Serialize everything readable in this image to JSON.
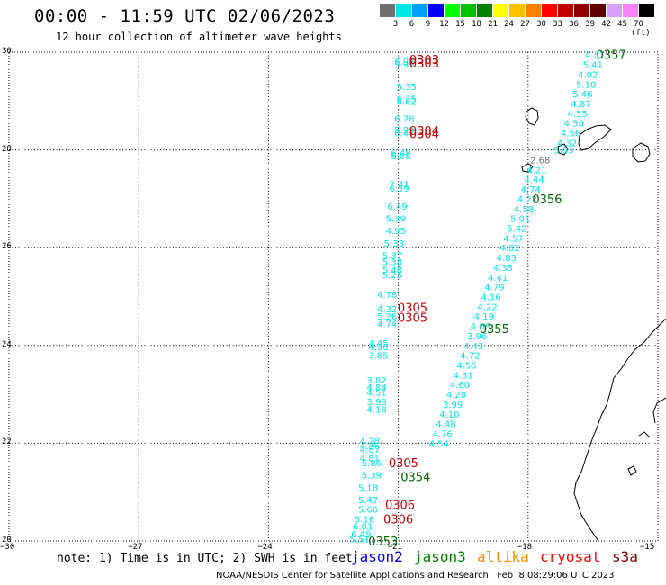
{
  "header": {
    "title": "00:00 - 11:59 UTC 02/06/2023",
    "subtitle": "12 hour collection of altimeter wave heights"
  },
  "color_scale": {
    "unit_label": "(ft)",
    "items": [
      {
        "label": "3",
        "color": "#707070"
      },
      {
        "label": "6",
        "color": "#00e6e6"
      },
      {
        "label": "9",
        "color": "#00a0ff"
      },
      {
        "label": "12",
        "color": "#0000ff"
      },
      {
        "label": "15",
        "color": "#00ff00"
      },
      {
        "label": "18",
        "color": "#00c000"
      },
      {
        "label": "21",
        "color": "#008000"
      },
      {
        "label": "24",
        "color": "#ffff00"
      },
      {
        "label": "27",
        "color": "#ffc000"
      },
      {
        "label": "30",
        "color": "#ff8000"
      },
      {
        "label": "33",
        "color": "#ff0000"
      },
      {
        "label": "36",
        "color": "#c00000"
      },
      {
        "label": "39",
        "color": "#900000"
      },
      {
        "label": "42",
        "color": "#600000"
      },
      {
        "label": "45",
        "color": "#d8a0ff"
      },
      {
        "label": "70",
        "color": "#ff80ff"
      },
      {
        "label": "",
        "color": "#000000"
      }
    ]
  },
  "axes": {
    "y_ticks": [
      "30",
      "28",
      "26",
      "24",
      "22",
      "20"
    ],
    "x_ticks": [
      "−30",
      "−27",
      "−24",
      "−21",
      "−18",
      "−15"
    ]
  },
  "map": {
    "lon_range": [
      -30,
      -15
    ],
    "lat_range": [
      20,
      30
    ],
    "grid": "dotted",
    "coastline_color": "#000000"
  },
  "track_colors": {
    "jason3": "#00e6e6",
    "time": "#cc0000",
    "time_alt": "#006600",
    "gray": "#707070"
  },
  "tracks": [
    {
      "name": "west",
      "points": [
        {
          "lat": 29.82,
          "lon": -20.86,
          "v": "6.98"
        },
        {
          "lat": 29.75,
          "lon": -20.86,
          "v": "5.95"
        },
        {
          "lat": 29.3,
          "lon": -20.81,
          "v": "5.35"
        },
        {
          "lat": 29.05,
          "lon": -20.81,
          "v": "6.35"
        },
        {
          "lat": 29.0,
          "lon": -20.81,
          "v": "6.82"
        },
        {
          "lat": 28.65,
          "lon": -20.86,
          "v": "6.76"
        },
        {
          "lat": 28.42,
          "lon": -20.86,
          "v": "5.99"
        },
        {
          "lat": 28.35,
          "lon": -20.86,
          "v": "6.47"
        },
        {
          "lat": 27.95,
          "lon": -20.94,
          "v": "6.48"
        },
        {
          "lat": 27.88,
          "lon": -20.94,
          "v": "6.88"
        },
        {
          "lat": 27.3,
          "lon": -20.98,
          "v": "7.41"
        },
        {
          "lat": 27.22,
          "lon": -20.98,
          "v": "6.59"
        },
        {
          "lat": 26.85,
          "lon": -21.02,
          "v": "6.49"
        },
        {
          "lat": 26.6,
          "lon": -21.06,
          "v": "5.39"
        },
        {
          "lat": 26.35,
          "lon": -21.06,
          "v": "4.95"
        },
        {
          "lat": 26.1,
          "lon": -21.1,
          "v": "5.33"
        },
        {
          "lat": 25.85,
          "lon": -21.14,
          "v": "5.37"
        },
        {
          "lat": 25.72,
          "lon": -21.14,
          "v": "5.38"
        },
        {
          "lat": 25.55,
          "lon": -21.14,
          "v": "5.48"
        },
        {
          "lat": 25.45,
          "lon": -21.14,
          "v": "5.25"
        },
        {
          "lat": 25.05,
          "lon": -21.26,
          "v": "4.78"
        },
        {
          "lat": 24.75,
          "lon": -21.26,
          "v": "4.32"
        },
        {
          "lat": 24.6,
          "lon": -21.26,
          "v": "5.26"
        },
        {
          "lat": 24.45,
          "lon": -21.26,
          "v": "4.74"
        },
        {
          "lat": 24.05,
          "lon": -21.46,
          "v": "4.45"
        },
        {
          "lat": 23.98,
          "lon": -21.46,
          "v": "4.90"
        },
        {
          "lat": 23.8,
          "lon": -21.46,
          "v": "3.85"
        },
        {
          "lat": 23.3,
          "lon": -21.5,
          "v": "3.82"
        },
        {
          "lat": 23.15,
          "lon": -21.5,
          "v": "4.84"
        },
        {
          "lat": 23.05,
          "lon": -21.5,
          "v": "4.51"
        },
        {
          "lat": 22.85,
          "lon": -21.5,
          "v": "3.98"
        },
        {
          "lat": 22.7,
          "lon": -21.5,
          "v": "4.18"
        },
        {
          "lat": 22.05,
          "lon": -21.66,
          "v": "4.28"
        },
        {
          "lat": 21.95,
          "lon": -21.66,
          "v": "4.36"
        },
        {
          "lat": 21.88,
          "lon": -21.66,
          "v": "4.87"
        },
        {
          "lat": 21.7,
          "lon": -21.66,
          "v": "4.81"
        },
        {
          "lat": 21.6,
          "lon": -21.62,
          "v": "5.86"
        },
        {
          "lat": 21.35,
          "lon": -21.62,
          "v": "5.39"
        },
        {
          "lat": 21.1,
          "lon": -21.7,
          "v": "5.18"
        },
        {
          "lat": 20.85,
          "lon": -21.7,
          "v": "5.47"
        },
        {
          "lat": 20.65,
          "lon": -21.7,
          "v": "5.66"
        },
        {
          "lat": 20.45,
          "lon": -21.78,
          "v": "5.16"
        },
        {
          "lat": 20.3,
          "lon": -21.82,
          "v": "6.01"
        },
        {
          "lat": 20.15,
          "lon": -21.86,
          "v": "6.49"
        },
        {
          "lat": 20.05,
          "lon": -21.9,
          "v": "5.51"
        }
      ]
    },
    {
      "name": "east",
      "points": [
        {
          "lat": 29.95,
          "lon": -16.45,
          "v": "4.51"
        },
        {
          "lat": 29.75,
          "lon": -16.5,
          "v": "5.41"
        },
        {
          "lat": 29.55,
          "lon": -16.62,
          "v": "4.02"
        },
        {
          "lat": 29.35,
          "lon": -16.66,
          "v": "5.10"
        },
        {
          "lat": 29.15,
          "lon": -16.74,
          "v": "5.46"
        },
        {
          "lat": 28.95,
          "lon": -16.78,
          "v": "4.87"
        },
        {
          "lat": 28.75,
          "lon": -16.86,
          "v": "4.55"
        },
        {
          "lat": 28.55,
          "lon": -16.94,
          "v": "4.58"
        },
        {
          "lat": 28.35,
          "lon": -17.02,
          "v": "4.56"
        },
        {
          "lat": 28.15,
          "lon": -17.1,
          "v": "4.32"
        },
        {
          "lat": 28.0,
          "lon": -17.18,
          "v": "5.03"
        },
        {
          "lat": 27.6,
          "lon": -17.8,
          "v": "4.21"
        },
        {
          "lat": 27.4,
          "lon": -17.86,
          "v": "4.44"
        },
        {
          "lat": 27.2,
          "lon": -17.94,
          "v": "4.74"
        },
        {
          "lat": 27.0,
          "lon": -18.02,
          "v": "4.22"
        },
        {
          "lat": 26.8,
          "lon": -18.1,
          "v": "4.58"
        },
        {
          "lat": 26.6,
          "lon": -18.18,
          "v": "5.01"
        },
        {
          "lat": 26.4,
          "lon": -18.26,
          "v": "5.42"
        },
        {
          "lat": 26.2,
          "lon": -18.34,
          "v": "4.57"
        },
        {
          "lat": 26.0,
          "lon": -18.42,
          "v": "4.82"
        },
        {
          "lat": 25.8,
          "lon": -18.5,
          "v": "4.83"
        },
        {
          "lat": 25.6,
          "lon": -18.58,
          "v": "4.35"
        },
        {
          "lat": 25.4,
          "lon": -18.7,
          "v": "4.41"
        },
        {
          "lat": 25.2,
          "lon": -18.78,
          "v": "4.79"
        },
        {
          "lat": 25.0,
          "lon": -18.86,
          "v": "4.16"
        },
        {
          "lat": 24.8,
          "lon": -18.94,
          "v": "4.22"
        },
        {
          "lat": 24.6,
          "lon": -19.02,
          "v": "4.19"
        },
        {
          "lat": 24.4,
          "lon": -19.1,
          "v": "4.08"
        },
        {
          "lat": 24.2,
          "lon": -19.18,
          "v": "3.96"
        },
        {
          "lat": 24.0,
          "lon": -19.26,
          "v": "4.43"
        },
        {
          "lat": 23.8,
          "lon": -19.34,
          "v": "4.72"
        },
        {
          "lat": 23.6,
          "lon": -19.42,
          "v": "4.55"
        },
        {
          "lat": 23.4,
          "lon": -19.5,
          "v": "4.31"
        },
        {
          "lat": 23.2,
          "lon": -19.58,
          "v": "4.60"
        },
        {
          "lat": 23.0,
          "lon": -19.66,
          "v": "4.20"
        },
        {
          "lat": 22.8,
          "lon": -19.74,
          "v": "3.99"
        },
        {
          "lat": 22.6,
          "lon": -19.82,
          "v": "4.10"
        },
        {
          "lat": 22.4,
          "lon": -19.9,
          "v": "4.48"
        },
        {
          "lat": 22.2,
          "lon": -19.98,
          "v": "4.76"
        },
        {
          "lat": 22.0,
          "lon": -20.06,
          "v": "4.54"
        }
      ]
    }
  ],
  "gray_point": {
    "lat": 27.8,
    "lon": -17.72,
    "v": "2.68"
  },
  "time_labels": [
    {
      "t": "0303",
      "lat": 29.85,
      "lon": -20.4,
      "c": "red"
    },
    {
      "t": "0303",
      "lat": 29.78,
      "lon": -20.4,
      "c": "red"
    },
    {
      "t": "0304",
      "lat": 28.4,
      "lon": -20.4,
      "c": "red"
    },
    {
      "t": "0304",
      "lat": 28.33,
      "lon": -20.4,
      "c": "red"
    },
    {
      "t": "0305",
      "lat": 24.78,
      "lon": -20.67,
      "c": "red"
    },
    {
      "t": "0305",
      "lat": 24.58,
      "lon": -20.67,
      "c": "red"
    },
    {
      "t": "0305",
      "lat": 21.6,
      "lon": -20.88,
      "c": "red"
    },
    {
      "t": "0306",
      "lat": 20.75,
      "lon": -20.96,
      "c": "red"
    },
    {
      "t": "0306",
      "lat": 20.45,
      "lon": -21.0,
      "c": "red"
    },
    {
      "t": "0357",
      "lat": 29.95,
      "lon": -16.08,
      "c": "green"
    },
    {
      "t": "0356",
      "lat": 27.0,
      "lon": -17.56,
      "c": "green"
    },
    {
      "t": "0355",
      "lat": 24.35,
      "lon": -18.78,
      "c": "green"
    },
    {
      "t": "0354",
      "lat": 21.32,
      "lon": -20.6,
      "c": "green"
    },
    {
      "t": "0353",
      "lat": 20.0,
      "lon": -21.35,
      "c": "green"
    }
  ],
  "footer": {
    "note": "note: 1) Time is in UTC; 2) SWH is in feet",
    "legend": [
      {
        "label": "jason2",
        "color": "#0000ff"
      },
      {
        "label": "jason3",
        "color": "#008000"
      },
      {
        "label": "altika",
        "color": "#ff8c00"
      },
      {
        "label": "cryosat",
        "color": "#ff0000"
      },
      {
        "label": "s3a",
        "color": "#800000"
      }
    ],
    "credit": "NOAA/NESDIS Center for Satellite Applications and Research   Feb  8 08:29:06 UTC 2023"
  }
}
